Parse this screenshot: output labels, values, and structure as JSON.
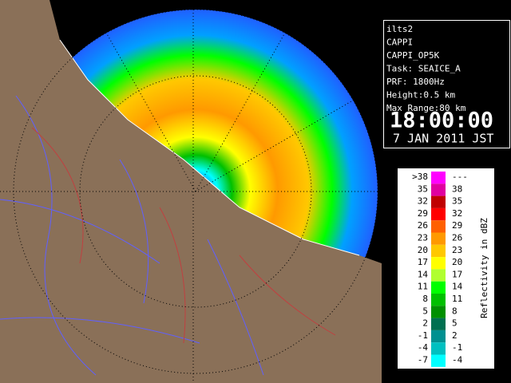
{
  "info": {
    "lines": [
      "ilts2",
      "CAPPI",
      "CAPPI_OP5K",
      "Task: SEAICE_A",
      "PRF: 1800Hz",
      "Height:0.5 km",
      "Max Range:80 km"
    ],
    "time": "18:00:00",
    "date": "7 JAN 2011 JST"
  },
  "legend": {
    "title": "Reflectivity in dBZ",
    "rows": [
      {
        "low": ">38",
        "high": "---",
        "color": "#ff00ff"
      },
      {
        "low": 35,
        "high": 38,
        "color": "#e000a0"
      },
      {
        "low": 32,
        "high": 35,
        "color": "#c00000"
      },
      {
        "low": 29,
        "high": 32,
        "color": "#ff0000"
      },
      {
        "low": 26,
        "high": 29,
        "color": "#ff6000"
      },
      {
        "low": 23,
        "high": 26,
        "color": "#ff9900"
      },
      {
        "low": 20,
        "high": 23,
        "color": "#ffc800"
      },
      {
        "low": 17,
        "high": 20,
        "color": "#ffff00"
      },
      {
        "low": 14,
        "high": 17,
        "color": "#b0ff30"
      },
      {
        "low": 11,
        "high": 14,
        "color": "#00ff00"
      },
      {
        "low": 8,
        "high": 11,
        "color": "#00c000"
      },
      {
        "low": 5,
        "high": 8,
        "color": "#009000"
      },
      {
        "low": 2,
        "high": 5,
        "color": "#007050"
      },
      {
        "low": -1,
        "high": 2,
        "color": "#009090"
      },
      {
        "low": -4,
        "high": -1,
        "color": "#00c0c0"
      },
      {
        "low": -7,
        "high": -4,
        "color": "#00ffff"
      }
    ]
  }
}
